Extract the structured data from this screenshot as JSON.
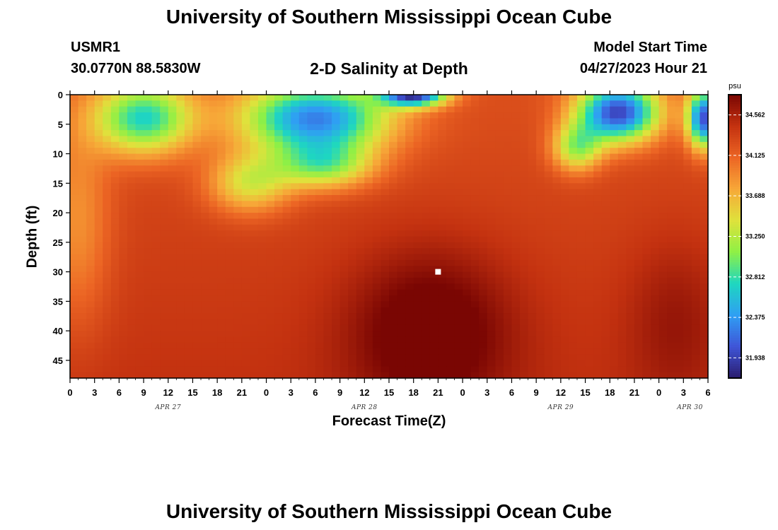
{
  "header": {
    "title": "University of Southern Mississippi Ocean Cube",
    "station": "USMR1",
    "coords": "30.0770N  88.5830W",
    "subtitle": "2-D Salinity at Depth",
    "model_start_label": "Model Start Time",
    "model_start_value": "04/27/2023 Hour 21"
  },
  "footer": {
    "title": "University of Southern Mississippi Ocean Cube"
  },
  "chart_data": {
    "type": "heatmap",
    "xlabel": "Forecast Time(Z)",
    "ylabel": "Depth (ft)",
    "x_range_hours": [
      0,
      78
    ],
    "y_range_ft": [
      0,
      48
    ],
    "x_tick_labels": [
      "0",
      "3",
      "6",
      "9",
      "12",
      "15",
      "18",
      "21",
      "0",
      "3",
      "6",
      "9",
      "12",
      "15",
      "18",
      "21",
      "0",
      "3",
      "6",
      "9",
      "12",
      "15",
      "18",
      "21",
      "0",
      "3",
      "6"
    ],
    "y_ticks": [
      0,
      5,
      10,
      15,
      20,
      25,
      30,
      35,
      40,
      45
    ],
    "day_labels": [
      "APR 27",
      "APR 28",
      "APR 29",
      "APR 30"
    ],
    "colorbar": {
      "unit": "psu",
      "ticks": [
        31.938,
        32.375,
        32.812,
        33.25,
        33.688,
        34.125,
        34.562
      ],
      "range": [
        31.72,
        34.78
      ]
    },
    "marker": {
      "hour": 45,
      "depth_ft": 30
    },
    "colors": {
      "palette": [
        "#2b1d6e",
        "#3f55d8",
        "#2f9ff3",
        "#1ed7c0",
        "#8ff045",
        "#dfe23c",
        "#f7a838",
        "#ec6524",
        "#c43210",
        "#7a0603"
      ]
    }
  }
}
